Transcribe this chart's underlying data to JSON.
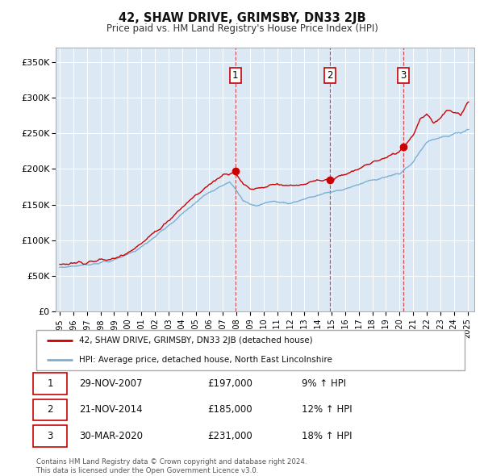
{
  "title": "42, SHAW DRIVE, GRIMSBY, DN33 2JB",
  "subtitle": "Price paid vs. HM Land Registry's House Price Index (HPI)",
  "background_color": "#ffffff",
  "plot_bg_color": "#dce9f5",
  "ylim": [
    0,
    370000
  ],
  "yticks": [
    0,
    50000,
    100000,
    150000,
    200000,
    250000,
    300000,
    350000
  ],
  "ytick_labels": [
    "£0",
    "£50K",
    "£100K",
    "£150K",
    "£200K",
    "£250K",
    "£300K",
    "£350K"
  ],
  "xlim_start": 1994.7,
  "xlim_end": 2025.5,
  "xticks": [
    1995,
    1996,
    1997,
    1998,
    1999,
    2000,
    2001,
    2002,
    2003,
    2004,
    2005,
    2006,
    2007,
    2008,
    2009,
    2010,
    2011,
    2012,
    2013,
    2014,
    2015,
    2016,
    2017,
    2018,
    2019,
    2020,
    2021,
    2022,
    2023,
    2024,
    2025
  ],
  "sale_dates": [
    2007.91,
    2014.89,
    2020.25
  ],
  "sale_prices": [
    197000,
    185000,
    231000
  ],
  "sale_labels": [
    "1",
    "2",
    "3"
  ],
  "legend_red": "42, SHAW DRIVE, GRIMSBY, DN33 2JB (detached house)",
  "legend_blue": "HPI: Average price, detached house, North East Lincolnshire",
  "table_rows": [
    [
      "1",
      "29-NOV-2007",
      "£197,000",
      "9% ↑ HPI"
    ],
    [
      "2",
      "21-NOV-2014",
      "£185,000",
      "12% ↑ HPI"
    ],
    [
      "3",
      "30-MAR-2020",
      "£231,000",
      "18% ↑ HPI"
    ]
  ],
  "footer": "Contains HM Land Registry data © Crown copyright and database right 2024.\nThis data is licensed under the Open Government Licence v3.0.",
  "red_color": "#cc0000",
  "blue_color": "#7aafd4",
  "vline_color": "#cc3333",
  "grid_color": "#ffffff",
  "shade_color": "#c8dcf0"
}
